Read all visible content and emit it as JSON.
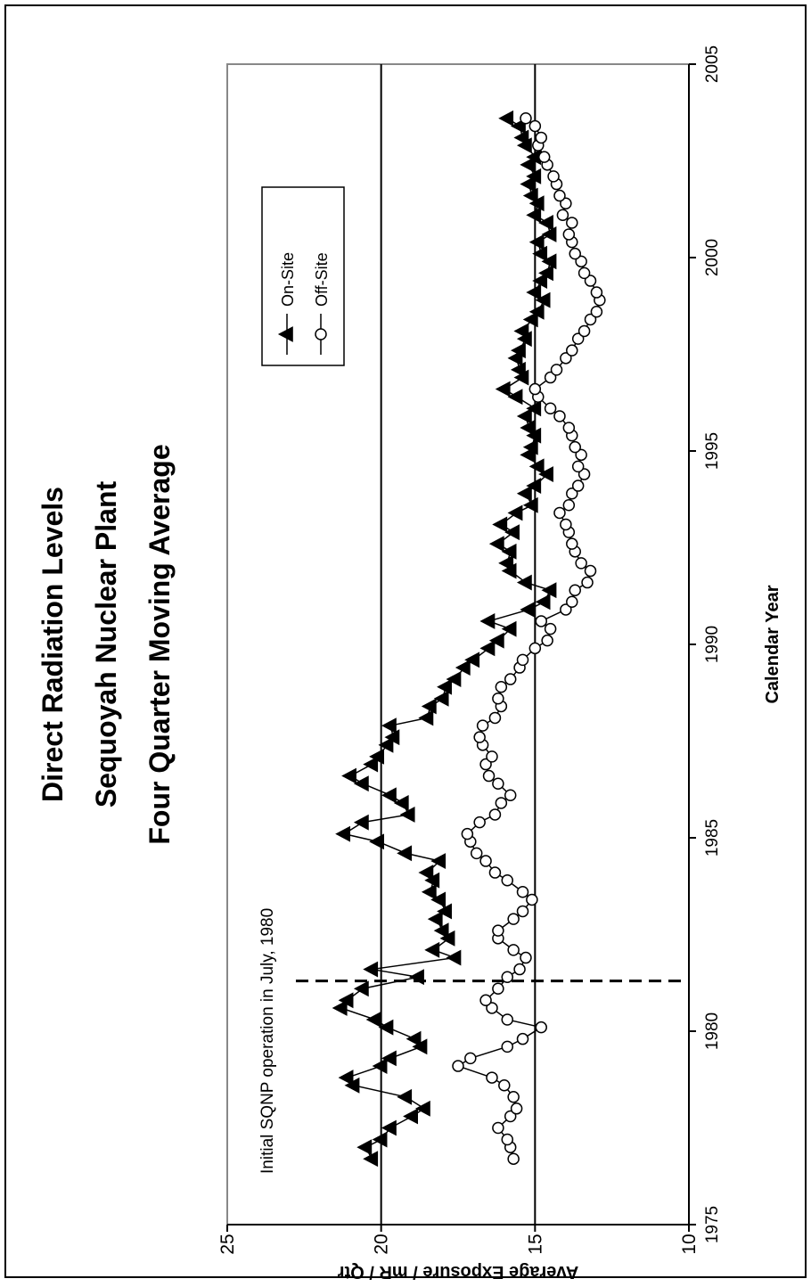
{
  "chart_data": {
    "type": "line",
    "title_lines": [
      "Direct Radiation Levels",
      "Sequoyah Nuclear Plant",
      "Four Quarter Moving Average"
    ],
    "xlabel": "Calendar Year",
    "ylabel": "Average Exposure  /  mR / Qtr",
    "xlim": [
      1975,
      2005
    ],
    "ylim": [
      10,
      25
    ],
    "x_ticks": [
      "1975",
      "1980",
      "1985",
      "1990",
      "1995",
      "2000",
      "2005"
    ],
    "y_ticks": [
      "10",
      "15",
      "20",
      "25"
    ],
    "reference_lines": [
      15,
      20
    ],
    "annotation": {
      "text": "Initial SQNP operation in July, 1980",
      "x": 1981.3
    },
    "legend": {
      "placement": "top-right",
      "entries": [
        {
          "label": "On-Site",
          "marker": "triangle-filled"
        },
        {
          "label": "Off-Site",
          "marker": "circle-open"
        }
      ]
    },
    "series": [
      {
        "name": "On-Site",
        "marker": "triangle-filled",
        "x": [
          1976.7,
          1977.0,
          1977.2,
          1977.5,
          1977.8,
          1978.0,
          1978.3,
          1978.6,
          1978.8,
          1979.1,
          1979.3,
          1979.6,
          1979.8,
          1980.1,
          1980.3,
          1980.6,
          1980.8,
          1981.1,
          1981.4,
          1981.6,
          1981.9,
          1982.1,
          1982.4,
          1982.6,
          1982.9,
          1983.1,
          1983.4,
          1983.6,
          1983.9,
          1984.1,
          1984.4,
          1984.6,
          1984.9,
          1985.1,
          1985.4,
          1985.6,
          1985.9,
          1986.1,
          1986.4,
          1986.6,
          1986.9,
          1987.1,
          1987.4,
          1987.6,
          1987.9,
          1988.1,
          1988.4,
          1988.6,
          1988.9,
          1989.1,
          1989.4,
          1989.6,
          1989.9,
          1990.1,
          1990.4,
          1990.6,
          1990.9,
          1991.1,
          1991.4,
          1991.6,
          1991.9,
          1992.1,
          1992.4,
          1992.6,
          1992.9,
          1993.1,
          1993.4,
          1993.6,
          1993.9,
          1994.1,
          1994.4,
          1994.6,
          1994.9,
          1995.1,
          1995.4,
          1995.6,
          1995.9,
          1996.1,
          1996.4,
          1996.6,
          1996.9,
          1997.1,
          1997.4,
          1997.6,
          1997.9,
          1998.1,
          1998.4,
          1998.6,
          1998.9,
          1999.1,
          1999.4,
          1999.6,
          1999.9,
          2000.1,
          2000.4,
          2000.6,
          2000.9,
          2001.1,
          2001.4,
          2001.6,
          2001.9,
          2002.1,
          2002.4,
          2002.6,
          2002.9,
          2003.1,
          2003.4,
          2003.6
        ],
        "y": [
          20.3,
          20.5,
          20.0,
          19.7,
          19.0,
          18.6,
          19.2,
          20.9,
          21.1,
          20.0,
          19.7,
          18.7,
          18.9,
          19.8,
          20.2,
          21.3,
          21.1,
          20.6,
          18.8,
          20.3,
          17.6,
          18.3,
          17.8,
          18.0,
          18.2,
          17.9,
          18.1,
          18.4,
          18.3,
          18.5,
          18.1,
          19.2,
          20.1,
          21.2,
          20.6,
          19.1,
          19.3,
          19.7,
          20.6,
          21.0,
          20.3,
          20.1,
          19.8,
          19.6,
          19.7,
          18.5,
          18.4,
          18.0,
          17.9,
          17.6,
          17.3,
          17.0,
          16.5,
          16.2,
          15.8,
          16.5,
          15.2,
          14.7,
          14.5,
          15.3,
          15.8,
          15.9,
          15.8,
          16.2,
          15.7,
          16.1,
          15.6,
          15.1,
          15.3,
          15.0,
          14.6,
          14.9,
          15.2,
          15.1,
          15.0,
          15.2,
          15.3,
          15.0,
          15.6,
          16.0,
          15.4,
          15.5,
          15.6,
          15.5,
          15.3,
          15.4,
          15.1,
          14.9,
          14.7,
          15.0,
          14.8,
          14.6,
          14.5,
          14.8,
          14.9,
          14.5,
          14.6,
          15.0,
          14.9,
          15.1,
          15.2,
          15.0,
          15.2,
          15.0,
          15.3,
          15.4,
          15.5,
          15.9
        ]
      },
      {
        "name": "Off-Site",
        "marker": "circle-open",
        "x": [
          1976.7,
          1977.0,
          1977.2,
          1977.5,
          1977.8,
          1978.0,
          1978.3,
          1978.6,
          1978.8,
          1979.1,
          1979.3,
          1979.6,
          1979.8,
          1980.1,
          1980.3,
          1980.6,
          1980.8,
          1981.1,
          1981.4,
          1981.6,
          1981.9,
          1982.1,
          1982.4,
          1982.6,
          1982.9,
          1983.1,
          1983.4,
          1983.6,
          1983.9,
          1984.1,
          1984.4,
          1984.6,
          1984.9,
          1985.1,
          1985.4,
          1985.6,
          1985.9,
          1986.1,
          1986.4,
          1986.6,
          1986.9,
          1987.1,
          1987.4,
          1987.6,
          1987.9,
          1988.1,
          1988.4,
          1988.6,
          1988.9,
          1989.1,
          1989.4,
          1989.6,
          1989.9,
          1990.1,
          1990.4,
          1990.6,
          1990.9,
          1991.1,
          1991.4,
          1991.6,
          1991.9,
          1992.1,
          1992.4,
          1992.6,
          1992.9,
          1993.1,
          1993.4,
          1993.6,
          1993.9,
          1994.1,
          1994.4,
          1994.6,
          1994.9,
          1995.1,
          1995.4,
          1995.6,
          1995.9,
          1996.1,
          1996.4,
          1996.6,
          1996.9,
          1997.1,
          1997.4,
          1997.6,
          1997.9,
          1998.1,
          1998.4,
          1998.6,
          1998.9,
          1999.1,
          1999.4,
          1999.6,
          1999.9,
          2000.1,
          2000.4,
          2000.6,
          2000.9,
          2001.1,
          2001.4,
          2001.6,
          2001.9,
          2002.1,
          2002.4,
          2002.6,
          2002.9,
          2003.1,
          2003.4,
          2003.6
        ],
        "y": [
          15.7,
          15.8,
          15.9,
          16.2,
          15.8,
          15.6,
          15.7,
          16.0,
          16.4,
          17.5,
          17.1,
          15.9,
          15.4,
          14.8,
          15.9,
          16.4,
          16.6,
          16.2,
          15.9,
          15.5,
          15.3,
          15.7,
          16.2,
          16.2,
          15.7,
          15.4,
          15.1,
          15.4,
          15.9,
          16.3,
          16.6,
          16.9,
          17.1,
          17.2,
          16.8,
          16.3,
          16.1,
          15.8,
          16.2,
          16.5,
          16.6,
          16.4,
          16.7,
          16.8,
          16.7,
          16.3,
          16.1,
          16.2,
          16.1,
          15.8,
          15.5,
          15.4,
          15.0,
          14.6,
          14.5,
          14.8,
          14.0,
          13.8,
          13.7,
          13.3,
          13.2,
          13.5,
          13.7,
          13.8,
          13.9,
          14.0,
          14.2,
          13.9,
          13.8,
          13.6,
          13.4,
          13.6,
          13.5,
          13.7,
          13.8,
          13.9,
          14.2,
          14.5,
          14.9,
          15.0,
          14.5,
          14.3,
          14.0,
          13.8,
          13.6,
          13.4,
          13.2,
          13.0,
          12.9,
          13.0,
          13.2,
          13.4,
          13.5,
          13.7,
          13.8,
          13.9,
          13.8,
          14.1,
          14.0,
          14.2,
          14.3,
          14.4,
          14.6,
          14.7,
          14.9,
          14.8,
          15.0,
          15.3
        ]
      }
    ]
  }
}
